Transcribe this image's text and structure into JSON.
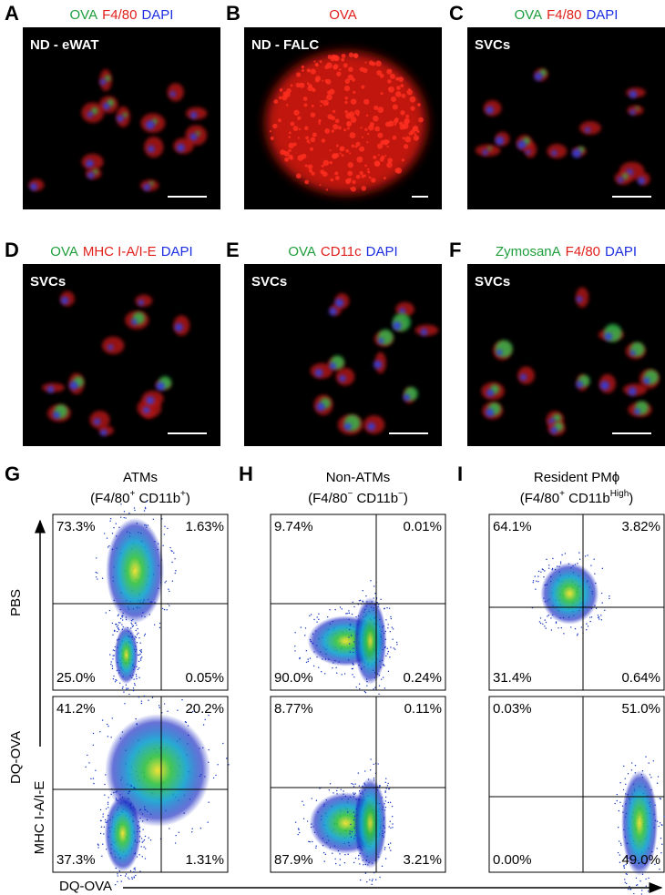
{
  "panels": [
    {
      "letter": "A",
      "stains": [
        {
          "text": "OVA",
          "color": "#1e9e3c"
        },
        {
          "text": "F4/80",
          "color": "#e0201c"
        },
        {
          "text": "DAPI",
          "color": "#1c2ee0"
        }
      ],
      "label": "ND - eWAT"
    },
    {
      "letter": "B",
      "stains": [
        {
          "text": "OVA",
          "color": "#e0201c"
        }
      ],
      "label": "ND - FALC"
    },
    {
      "letter": "C",
      "stains": [
        {
          "text": "OVA",
          "color": "#1e9e3c"
        },
        {
          "text": "F4/80",
          "color": "#e0201c"
        },
        {
          "text": "DAPI",
          "color": "#1c2ee0"
        }
      ],
      "label": "SVCs"
    },
    {
      "letter": "D",
      "stains": [
        {
          "text": "OVA",
          "color": "#1e9e3c"
        },
        {
          "text": "MHC I-A/I-E",
          "color": "#e0201c"
        },
        {
          "text": "DAPI",
          "color": "#1c2ee0"
        }
      ],
      "label": "SVCs"
    },
    {
      "letter": "E",
      "stains": [
        {
          "text": "OVA",
          "color": "#1e9e3c"
        },
        {
          "text": "CD11c",
          "color": "#e0201c"
        },
        {
          "text": "DAPI",
          "color": "#1c2ee0"
        }
      ],
      "label": "SVCs"
    },
    {
      "letter": "F",
      "stains": [
        {
          "text": "ZymosanA",
          "color": "#1e9e3c"
        },
        {
          "text": "F4/80",
          "color": "#e0201c"
        },
        {
          "text": "DAPI",
          "color": "#1c2ee0"
        }
      ],
      "label": "SVCs"
    }
  ],
  "flow": {
    "row_labels": [
      "PBS",
      "DQ-OVA"
    ],
    "y_axis": "MHC I-A/I-E",
    "x_axis": "DQ-OVA",
    "columns": [
      {
        "letter": "G",
        "title": "ATMs",
        "subtitle": [
          "(F4/80",
          "+",
          " CD11b",
          "+",
          ")"
        ],
        "quadrants": [
          [
            "73.3%",
            "1.63%",
            "25.0%",
            "0.05%"
          ],
          [
            "41.2%",
            "20.2%",
            "37.3%",
            "1.31%"
          ]
        ]
      },
      {
        "letter": "H",
        "title": "Non-ATMs",
        "subtitle": [
          "(F4/80",
          "−",
          " CD11b",
          "−",
          ")"
        ],
        "quadrants": [
          [
            "9.74%",
            "0.01%",
            "90.0%",
            "0.24%"
          ],
          [
            "8.77%",
            "0.11%",
            "87.9%",
            "3.21%"
          ]
        ]
      },
      {
        "letter": "I",
        "title": "Resident PMϕ",
        "subtitle": [
          "(F4/80",
          "+",
          " CD11b",
          "High",
          ")"
        ],
        "quadrants": [
          [
            "64.1%",
            "3.82%",
            "31.4%",
            "0.64%"
          ],
          [
            "0.03%",
            "51.0%",
            "0.00%",
            "49.0%"
          ]
        ]
      }
    ]
  }
}
